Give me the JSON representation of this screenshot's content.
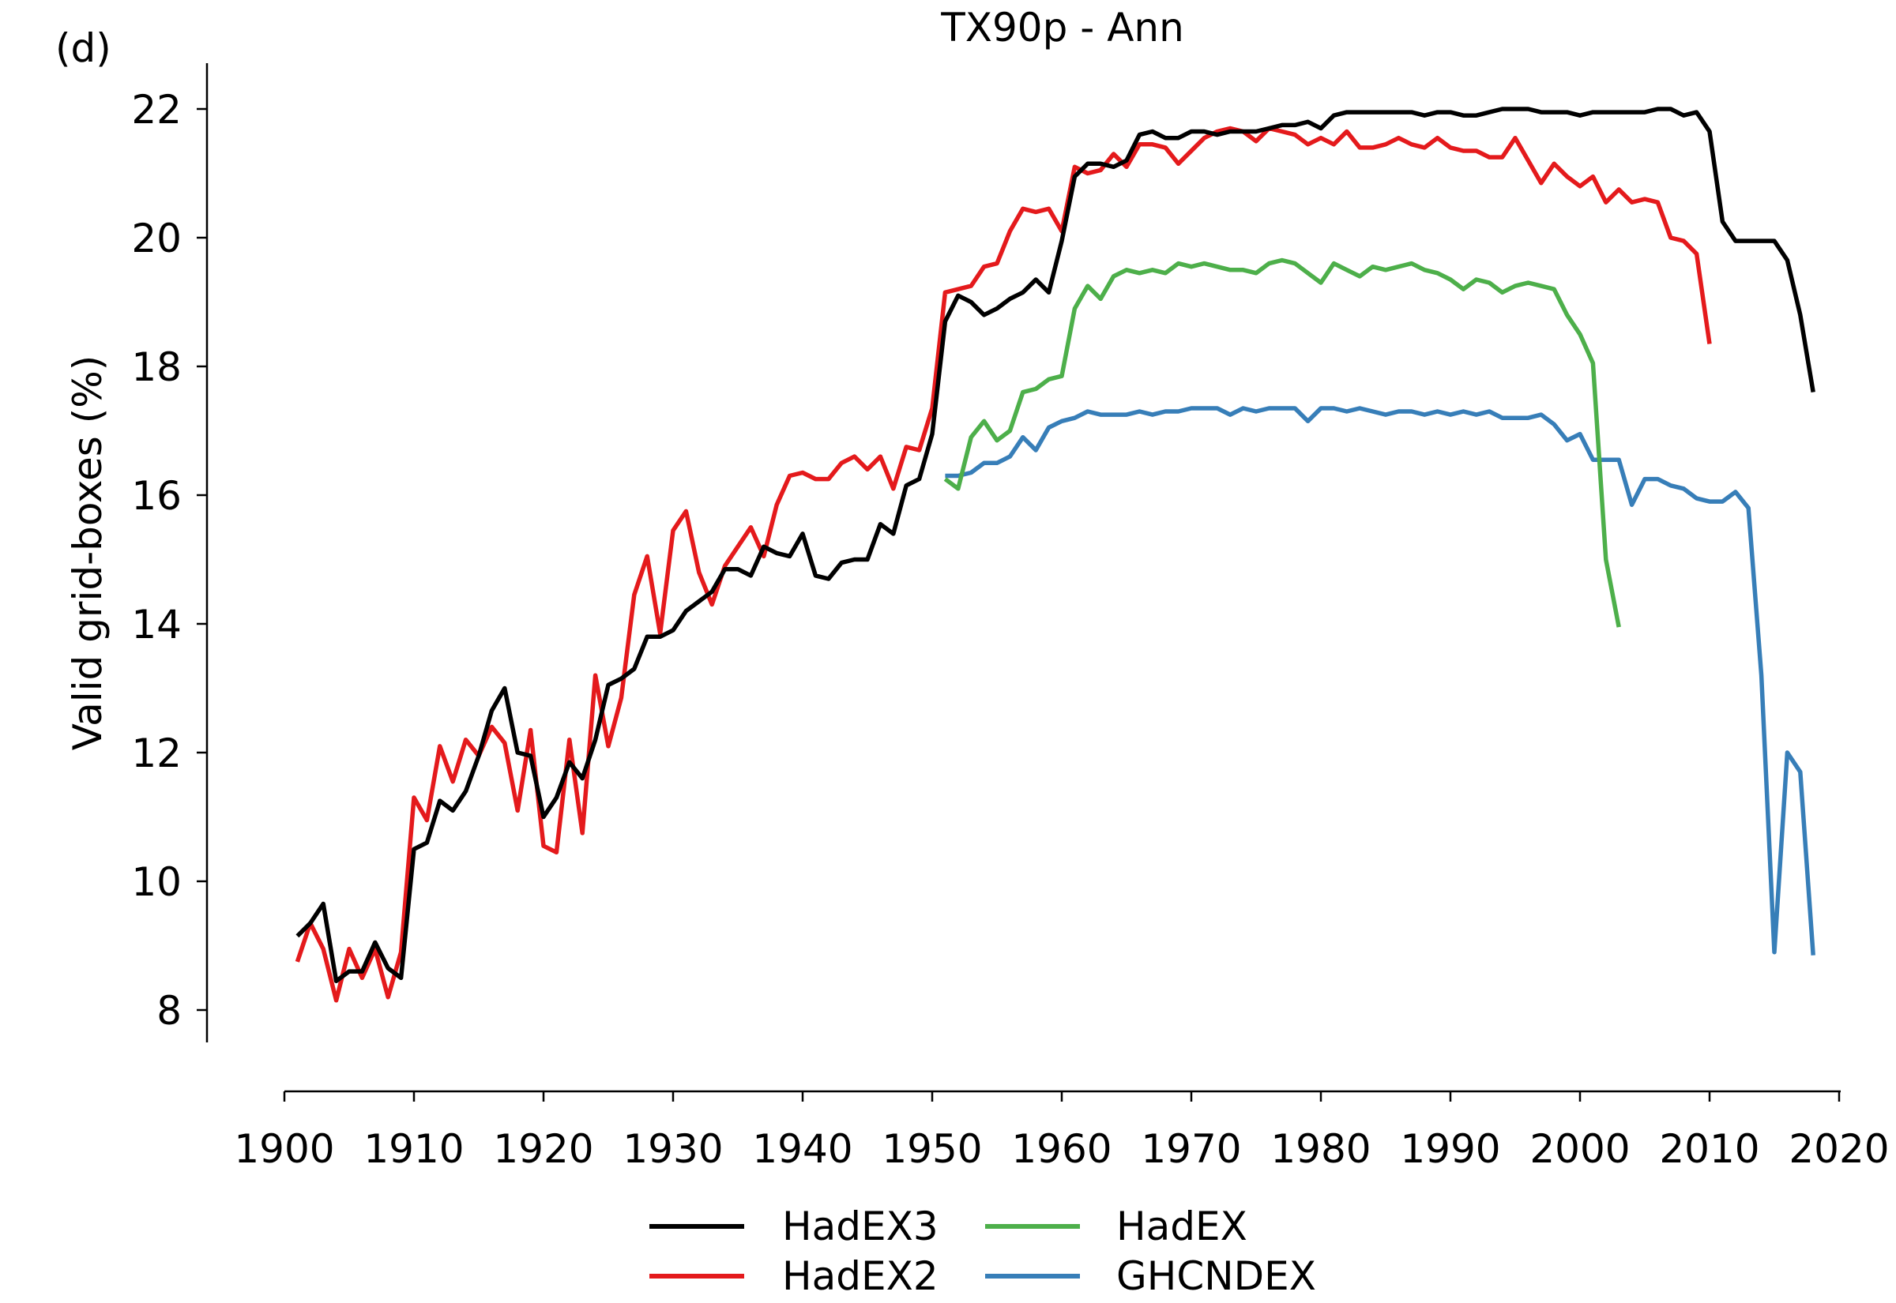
{
  "chart_data": {
    "type": "line",
    "panel_label": "(d)",
    "title": "TX90p - Ann",
    "ylabel": "Valid grid-boxes (%)",
    "xlabel": "",
    "xlim": [
      1900,
      2020
    ],
    "ylim": [
      7.5,
      22.7
    ],
    "xticks": [
      1900,
      1910,
      1920,
      1930,
      1940,
      1950,
      1960,
      1970,
      1980,
      1990,
      2000,
      2010,
      2020
    ],
    "yticks": [
      8,
      10,
      12,
      14,
      16,
      18,
      20,
      22
    ],
    "grid": false,
    "legend_position": "bottom-center",
    "series": [
      {
        "name": "HadEX3",
        "color": "#000000",
        "x_start": 1901,
        "values": [
          9.15,
          9.35,
          9.65,
          8.45,
          8.6,
          8.6,
          9.05,
          8.65,
          8.5,
          10.5,
          10.6,
          11.25,
          11.1,
          11.4,
          11.95,
          12.65,
          13.0,
          12.0,
          11.95,
          11.0,
          11.3,
          11.85,
          11.6,
          12.2,
          13.05,
          13.15,
          13.3,
          13.8,
          13.8,
          13.9,
          14.2,
          14.35,
          14.5,
          14.85,
          14.85,
          14.75,
          15.2,
          15.1,
          15.05,
          15.4,
          14.75,
          14.7,
          14.95,
          15.0,
          15.0,
          15.55,
          15.4,
          16.15,
          16.25,
          16.95,
          18.7,
          19.1,
          19.0,
          18.8,
          18.9,
          19.05,
          19.15,
          19.35,
          19.15,
          19.95,
          20.95,
          21.15,
          21.15,
          21.1,
          21.2,
          21.6,
          21.65,
          21.55,
          21.55,
          21.65,
          21.65,
          21.6,
          21.65,
          21.65,
          21.65,
          21.7,
          21.75,
          21.75,
          21.8,
          21.7,
          21.9,
          21.95,
          21.95,
          21.95,
          21.95,
          21.95,
          21.95,
          21.9,
          21.95,
          21.95,
          21.9,
          21.9,
          21.95,
          22.0,
          22.0,
          22.0,
          21.95,
          21.95,
          21.95,
          21.9,
          21.95,
          21.95,
          21.95,
          21.95,
          21.95,
          22.0,
          22.0,
          21.9,
          21.95,
          21.65,
          20.25,
          19.95,
          19.95,
          19.95,
          19.95,
          19.65,
          18.8,
          17.6
        ]
      },
      {
        "name": "HadEX2",
        "color": "#e41a1c",
        "x_start": 1901,
        "values": [
          8.75,
          9.35,
          8.95,
          8.15,
          8.95,
          8.5,
          8.95,
          8.2,
          8.9,
          11.3,
          10.95,
          12.1,
          11.55,
          12.2,
          11.95,
          12.4,
          12.15,
          11.1,
          12.35,
          10.55,
          10.45,
          12.2,
          10.75,
          13.2,
          12.1,
          12.85,
          14.45,
          15.05,
          13.85,
          15.45,
          15.75,
          14.8,
          14.3,
          14.9,
          15.2,
          15.5,
          15.05,
          15.85,
          16.3,
          16.35,
          16.25,
          16.25,
          16.5,
          16.6,
          16.4,
          16.6,
          16.1,
          16.75,
          16.7,
          17.35,
          19.15,
          19.2,
          19.25,
          19.55,
          19.6,
          20.1,
          20.45,
          20.4,
          20.45,
          20.1,
          21.1,
          21.0,
          21.05,
          21.3,
          21.1,
          21.45,
          21.45,
          21.4,
          21.15,
          21.35,
          21.55,
          21.65,
          21.7,
          21.65,
          21.5,
          21.7,
          21.65,
          21.6,
          21.45,
          21.55,
          21.45,
          21.65,
          21.4,
          21.4,
          21.45,
          21.55,
          21.45,
          21.4,
          21.55,
          21.4,
          21.35,
          21.35,
          21.25,
          21.25,
          21.55,
          21.2,
          20.85,
          21.15,
          20.95,
          20.8,
          20.95,
          20.55,
          20.75,
          20.55,
          20.6,
          20.55,
          20.0,
          19.95,
          19.75,
          18.35
        ]
      },
      {
        "name": "HadEX",
        "color": "#4daf4a",
        "x_start": 1951,
        "values": [
          16.25,
          16.1,
          16.9,
          17.15,
          16.85,
          17.0,
          17.6,
          17.65,
          17.8,
          17.85,
          18.9,
          19.25,
          19.05,
          19.4,
          19.5,
          19.45,
          19.5,
          19.45,
          19.6,
          19.55,
          19.6,
          19.55,
          19.5,
          19.5,
          19.45,
          19.6,
          19.65,
          19.6,
          19.45,
          19.3,
          19.6,
          19.5,
          19.4,
          19.55,
          19.5,
          19.55,
          19.6,
          19.5,
          19.45,
          19.35,
          19.2,
          19.35,
          19.3,
          19.15,
          19.25,
          19.3,
          19.25,
          19.2,
          18.8,
          18.5,
          18.05,
          15.0,
          13.95
        ]
      },
      {
        "name": "GHCNDEX",
        "color": "#377eb8",
        "x_start": 1951,
        "values": [
          16.3,
          16.3,
          16.35,
          16.5,
          16.5,
          16.6,
          16.9,
          16.7,
          17.05,
          17.15,
          17.2,
          17.3,
          17.25,
          17.25,
          17.25,
          17.3,
          17.25,
          17.3,
          17.3,
          17.35,
          17.35,
          17.35,
          17.25,
          17.35,
          17.3,
          17.35,
          17.35,
          17.35,
          17.15,
          17.35,
          17.35,
          17.3,
          17.35,
          17.3,
          17.25,
          17.3,
          17.3,
          17.25,
          17.3,
          17.25,
          17.3,
          17.25,
          17.3,
          17.2,
          17.2,
          17.2,
          17.25,
          17.1,
          16.85,
          16.95,
          16.55,
          16.55,
          16.55,
          15.85,
          16.25,
          16.25,
          16.15,
          16.1,
          15.95,
          15.9,
          15.9,
          16.05,
          15.8,
          13.2,
          8.9,
          12.0,
          11.7,
          8.85
        ]
      }
    ]
  }
}
